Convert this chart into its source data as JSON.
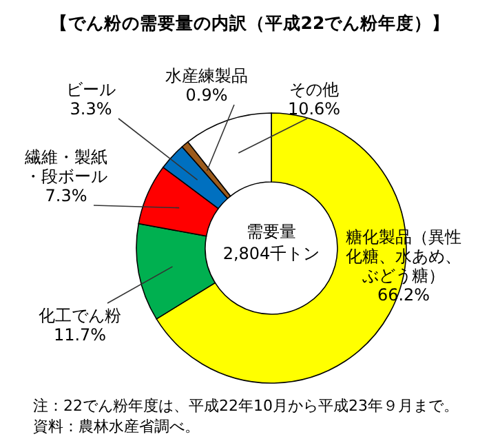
{
  "chart_data": {
    "type": "donut",
    "title": "【でん粉の需要量の内訳（平成22でん粉年度）】",
    "categories": [
      "糖化製品（異性化糖、水あめ、ぶどう糖）",
      "化工でん粉",
      "繊維・製紙・段ボール",
      "ビール",
      "水産練製品",
      "その他"
    ],
    "values": [
      66.2,
      11.7,
      7.3,
      3.3,
      0.9,
      10.6
    ],
    "colors": [
      "#ffff00",
      "#00b050",
      "#ff0000",
      "#0070c0",
      "#9c5b1c",
      "#ffffff"
    ],
    "value_labels": [
      "66.2%",
      "11.7%",
      "7.3%",
      "3.3%",
      "0.9%",
      "10.6%"
    ],
    "annotations": [
      "需要量\n2,804千トン",
      "注：22でん粉年度は、平成22年10月から平成23年９月まで。",
      "資料：農林水産省調べ。"
    ]
  }
}
